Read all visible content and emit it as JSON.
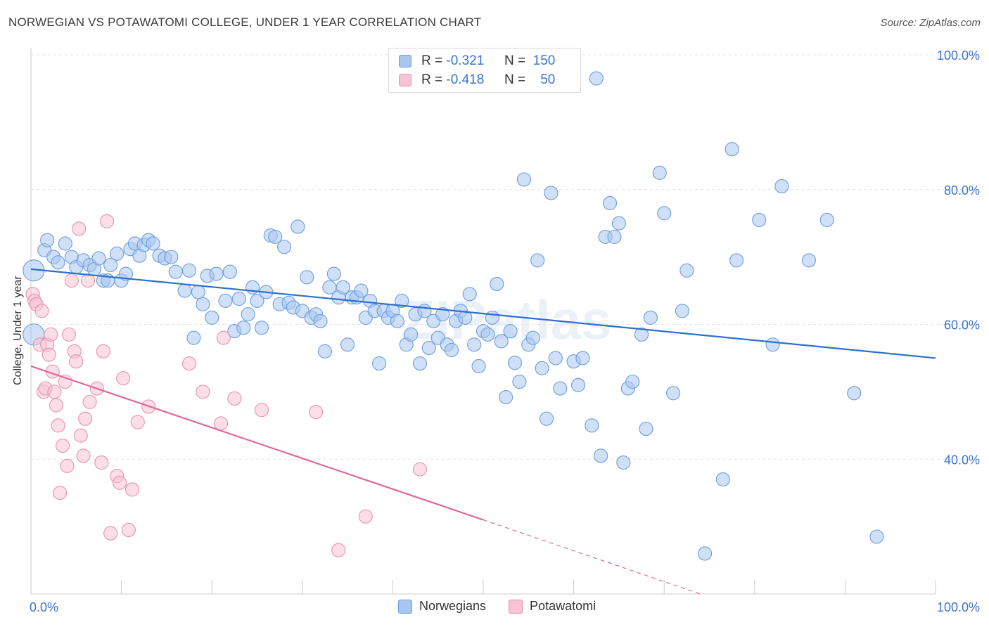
{
  "title": "NORWEGIAN VS POTAWATOMI COLLEGE, UNDER 1 YEAR CORRELATION CHART",
  "source": "Source: ZipAtlas.com",
  "watermark": "ZIPatlas",
  "legend_top": [
    {
      "r_label": "R =",
      "r_value": "-0.321",
      "n_label": "N =",
      "n_value": "150",
      "color": "#a8c7f0",
      "border": "#6d9de0"
    },
    {
      "r_label": "R =",
      "r_value": "-0.418",
      "n_label": "N =",
      "n_value": "50",
      "color": "#f8c3d3",
      "border": "#e892ad"
    }
  ],
  "chart_data": {
    "type": "scatter",
    "title": "NORWEGIAN VS POTAWATOMI COLLEGE, UNDER 1 YEAR CORRELATION CHART",
    "xlabel": "",
    "ylabel": "College, Under 1 year",
    "xlim": [
      0,
      100
    ],
    "ylim": [
      20,
      100
    ],
    "x_tick_labels": [
      "0.0%",
      "100.0%"
    ],
    "y_tick_labels": [
      "40.0%",
      "60.0%",
      "80.0%",
      "100.0%"
    ],
    "y_ticks": [
      40,
      60,
      80,
      100
    ],
    "grid": "horizontal dashed",
    "legend_position": "bottom-center",
    "series": [
      {
        "name": "Norwegians",
        "color": "#6d9de0",
        "fill": "#a8c7f0",
        "trend": {
          "x0": 0,
          "y0": 68.2,
          "x1": 100,
          "y1": 55.0
        },
        "points": [
          [
            0.3,
            68.0
          ],
          [
            0.3,
            58.5
          ],
          [
            1.5,
            71.0
          ],
          [
            1.8,
            72.5
          ],
          [
            2.5,
            70.0
          ],
          [
            3.0,
            69.2
          ],
          [
            3.8,
            72.0
          ],
          [
            4.5,
            70.0
          ],
          [
            5.0,
            68.5
          ],
          [
            5.8,
            69.5
          ],
          [
            6.5,
            68.8
          ],
          [
            7.0,
            68.2
          ],
          [
            7.5,
            69.8
          ],
          [
            8.0,
            66.5
          ],
          [
            8.5,
            66.5
          ],
          [
            8.8,
            68.8
          ],
          [
            9.5,
            70.5
          ],
          [
            10.0,
            66.5
          ],
          [
            10.5,
            67.5
          ],
          [
            11.0,
            71.2
          ],
          [
            11.5,
            72.0
          ],
          [
            12.0,
            70.2
          ],
          [
            12.5,
            71.8
          ],
          [
            13.0,
            72.5
          ],
          [
            13.5,
            72.0
          ],
          [
            14.2,
            70.2
          ],
          [
            14.8,
            69.8
          ],
          [
            15.5,
            70.0
          ],
          [
            16.0,
            67.8
          ],
          [
            17.0,
            65.0
          ],
          [
            17.5,
            68.0
          ],
          [
            18.0,
            58.0
          ],
          [
            18.5,
            64.8
          ],
          [
            19.0,
            63.0
          ],
          [
            19.5,
            67.2
          ],
          [
            20.0,
            61.0
          ],
          [
            20.5,
            67.5
          ],
          [
            21.5,
            63.5
          ],
          [
            22.0,
            67.8
          ],
          [
            22.5,
            59.0
          ],
          [
            23.0,
            63.8
          ],
          [
            23.5,
            59.5
          ],
          [
            24.0,
            61.5
          ],
          [
            24.5,
            65.5
          ],
          [
            25.0,
            63.5
          ],
          [
            25.5,
            59.5
          ],
          [
            26.0,
            64.8
          ],
          [
            26.5,
            73.2
          ],
          [
            27.0,
            73.0
          ],
          [
            27.5,
            63.0
          ],
          [
            28.0,
            71.5
          ],
          [
            28.5,
            63.2
          ],
          [
            29.0,
            62.5
          ],
          [
            29.5,
            74.5
          ],
          [
            30.0,
            62.0
          ],
          [
            30.5,
            67.0
          ],
          [
            31.0,
            61.0
          ],
          [
            31.5,
            61.5
          ],
          [
            32.0,
            60.5
          ],
          [
            32.5,
            56.0
          ],
          [
            33.0,
            65.5
          ],
          [
            33.5,
            67.5
          ],
          [
            34.0,
            64.0
          ],
          [
            34.5,
            65.5
          ],
          [
            35.0,
            57.0
          ],
          [
            35.5,
            64.0
          ],
          [
            36.0,
            64.0
          ],
          [
            36.5,
            65.0
          ],
          [
            37.0,
            61.0
          ],
          [
            37.5,
            63.5
          ],
          [
            38.0,
            62.0
          ],
          [
            38.5,
            54.2
          ],
          [
            39.0,
            62.0
          ],
          [
            39.5,
            61.0
          ],
          [
            40.0,
            62.0
          ],
          [
            40.5,
            60.5
          ],
          [
            41.0,
            63.5
          ],
          [
            41.5,
            57.0
          ],
          [
            42.0,
            58.5
          ],
          [
            42.5,
            61.5
          ],
          [
            43.0,
            54.2
          ],
          [
            43.5,
            62.0
          ],
          [
            44.0,
            56.5
          ],
          [
            44.5,
            60.5
          ],
          [
            45.0,
            58.0
          ],
          [
            45.5,
            61.5
          ],
          [
            46.0,
            57.0
          ],
          [
            46.5,
            56.2
          ],
          [
            47.0,
            60.5
          ],
          [
            47.5,
            62.0
          ],
          [
            48.0,
            61.0
          ],
          [
            48.5,
            64.5
          ],
          [
            49.0,
            57.0
          ],
          [
            49.5,
            53.8
          ],
          [
            50.0,
            59.0
          ],
          [
            50.5,
            58.5
          ],
          [
            51.0,
            61.0
          ],
          [
            51.5,
            66.0
          ],
          [
            52.0,
            57.5
          ],
          [
            52.5,
            49.2
          ],
          [
            53.0,
            59.0
          ],
          [
            53.5,
            54.3
          ],
          [
            54.0,
            51.5
          ],
          [
            54.5,
            81.5
          ],
          [
            55.0,
            57.0
          ],
          [
            55.5,
            58.0
          ],
          [
            56.0,
            69.5
          ],
          [
            56.5,
            53.5
          ],
          [
            57.0,
            46.0
          ],
          [
            57.5,
            79.5
          ],
          [
            58.0,
            55.0
          ],
          [
            58.5,
            50.5
          ],
          [
            60.0,
            54.5
          ],
          [
            60.5,
            51.0
          ],
          [
            61.0,
            55.0
          ],
          [
            62.0,
            45.0
          ],
          [
            62.5,
            96.5
          ],
          [
            63.0,
            40.5
          ],
          [
            63.5,
            73.0
          ],
          [
            64.0,
            78.0
          ],
          [
            64.5,
            73.0
          ],
          [
            65.0,
            75.0
          ],
          [
            65.5,
            39.5
          ],
          [
            66.0,
            50.5
          ],
          [
            66.5,
            51.5
          ],
          [
            67.5,
            58.5
          ],
          [
            68.0,
            44.5
          ],
          [
            68.5,
            61.0
          ],
          [
            69.5,
            82.5
          ],
          [
            70.0,
            76.5
          ],
          [
            71.0,
            49.8
          ],
          [
            72.0,
            62.0
          ],
          [
            72.5,
            68.0
          ],
          [
            74.5,
            26.0
          ],
          [
            76.5,
            37.0
          ],
          [
            77.5,
            86.0
          ],
          [
            78.0,
            69.5
          ],
          [
            80.5,
            75.5
          ],
          [
            82.0,
            57.0
          ],
          [
            83.0,
            80.5
          ],
          [
            86.0,
            69.5
          ],
          [
            88.0,
            75.5
          ],
          [
            91.0,
            49.8
          ],
          [
            93.5,
            28.5
          ]
        ]
      },
      {
        "name": "Potawatomi",
        "color": "#e892ad",
        "fill": "#f8c3d3",
        "trend": {
          "x0": 0,
          "y0": 53.8,
          "x1": 50,
          "y1": 31.0
        },
        "trend_dashed": {
          "x0": 50,
          "y0": 31.0,
          "x1": 74,
          "y1": 20.0
        },
        "points": [
          [
            0.2,
            64.5
          ],
          [
            0.4,
            63.5
          ],
          [
            0.6,
            63.0
          ],
          [
            1.0,
            57.0
          ],
          [
            1.2,
            62.0
          ],
          [
            1.4,
            50.0
          ],
          [
            1.6,
            50.5
          ],
          [
            1.8,
            57.0
          ],
          [
            2.0,
            55.5
          ],
          [
            2.2,
            58.5
          ],
          [
            2.4,
            53.0
          ],
          [
            2.6,
            50.0
          ],
          [
            2.8,
            48.0
          ],
          [
            3.0,
            45.0
          ],
          [
            3.2,
            35.0
          ],
          [
            3.5,
            42.0
          ],
          [
            3.8,
            51.5
          ],
          [
            4.0,
            39.0
          ],
          [
            4.2,
            58.5
          ],
          [
            4.5,
            66.5
          ],
          [
            4.8,
            56.0
          ],
          [
            5.0,
            54.5
          ],
          [
            5.3,
            74.2
          ],
          [
            5.5,
            43.5
          ],
          [
            5.8,
            40.5
          ],
          [
            6.0,
            46.0
          ],
          [
            6.3,
            66.5
          ],
          [
            6.5,
            48.5
          ],
          [
            7.3,
            50.5
          ],
          [
            7.8,
            39.5
          ],
          [
            8.0,
            56.0
          ],
          [
            8.4,
            75.3
          ],
          [
            8.8,
            29.0
          ],
          [
            9.5,
            37.5
          ],
          [
            9.8,
            36.5
          ],
          [
            10.2,
            52.0
          ],
          [
            10.8,
            29.5
          ],
          [
            11.2,
            35.5
          ],
          [
            11.8,
            45.5
          ],
          [
            13.0,
            47.8
          ],
          [
            17.5,
            54.2
          ],
          [
            19.0,
            50.0
          ],
          [
            21.0,
            45.3
          ],
          [
            21.3,
            58.0
          ],
          [
            22.5,
            49.0
          ],
          [
            25.5,
            47.3
          ],
          [
            31.5,
            47.0
          ],
          [
            34.0,
            26.5
          ],
          [
            37.0,
            31.5
          ],
          [
            43.0,
            38.5
          ]
        ]
      }
    ]
  },
  "legend_bottom": [
    {
      "label": "Norwegians",
      "color": "#a8c7f0",
      "border": "#6d9de0"
    },
    {
      "label": "Potawatomi",
      "color": "#f8c3d3",
      "border": "#e892ad"
    }
  ]
}
